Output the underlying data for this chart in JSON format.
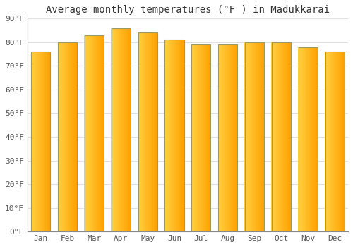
{
  "title": "Average monthly temperatures (°F ) in Madukkarai",
  "months": [
    "Jan",
    "Feb",
    "Mar",
    "Apr",
    "May",
    "Jun",
    "Jul",
    "Aug",
    "Sep",
    "Oct",
    "Nov",
    "Dec"
  ],
  "values": [
    76,
    80,
    83,
    86,
    84,
    81,
    79,
    79,
    80,
    80,
    78,
    76
  ],
  "ylim": [
    0,
    90
  ],
  "yticks": [
    0,
    10,
    20,
    30,
    40,
    50,
    60,
    70,
    80,
    90
  ],
  "ytick_labels": [
    "0°F",
    "10°F",
    "20°F",
    "30°F",
    "40°F",
    "50°F",
    "60°F",
    "70°F",
    "80°F",
    "90°F"
  ],
  "bar_color_left": "#FFD040",
  "bar_color_right": "#FFA000",
  "bar_edge_color": "#999966",
  "background_color": "#FFFFFF",
  "plot_bg_color": "#FFFFFF",
  "grid_color": "#E0E0E0",
  "title_fontsize": 10,
  "tick_fontsize": 8,
  "bar_width": 0.72
}
